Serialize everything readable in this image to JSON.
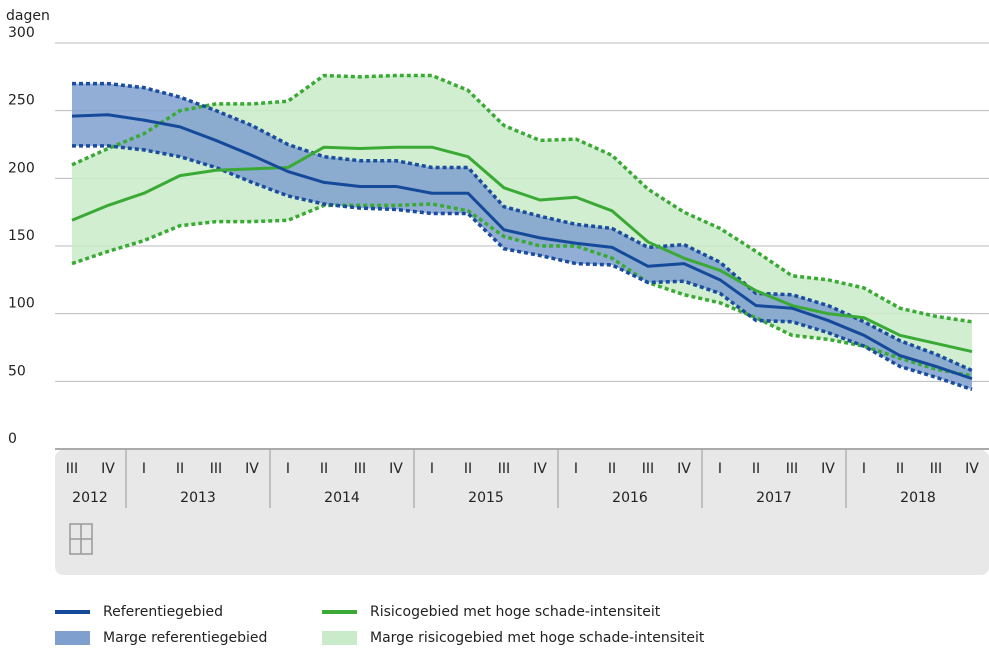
{
  "chart_data": {
    "type": "line",
    "y_axis_label": "dagen",
    "ylim": [
      0,
      300
    ],
    "yticks": [
      0,
      50,
      100,
      150,
      200,
      250,
      300
    ],
    "grid": true,
    "categories": [
      "III",
      "IV",
      "I",
      "II",
      "III",
      "IV",
      "I",
      "II",
      "III",
      "IV",
      "I",
      "II",
      "III",
      "IV",
      "I",
      "II",
      "III",
      "IV",
      "I",
      "II",
      "III",
      "IV",
      "I",
      "II",
      "III",
      "IV"
    ],
    "years": [
      "2012",
      "2013",
      "2014",
      "2015",
      "2016",
      "2017",
      "2018"
    ],
    "series": [
      {
        "name": "Marge risicogebied met hoge schade-intensiteit",
        "kind": "band",
        "color": "#c9ebc9",
        "edge_color": "#3aaa35",
        "upper": [
          210,
          222,
          233,
          250,
          255,
          255,
          257,
          276,
          275,
          276,
          276,
          265,
          239,
          228,
          229,
          217,
          192,
          175,
          163,
          146,
          128,
          125,
          119,
          104,
          98,
          94
        ],
        "lower": [
          137,
          146,
          154,
          165,
          168,
          168,
          169,
          180,
          180,
          180,
          181,
          176,
          157,
          150,
          150,
          141,
          123,
          114,
          108,
          97,
          84,
          81,
          76,
          67,
          59,
          54
        ]
      },
      {
        "name": "Marge referentiegebied",
        "kind": "band",
        "color": "#7f9fcf",
        "edge_color": "#1b4d9e",
        "upper": [
          270,
          270,
          267,
          260,
          250,
          239,
          225,
          216,
          213,
          213,
          208,
          208,
          179,
          172,
          166,
          163,
          149,
          151,
          138,
          115,
          114,
          106,
          94,
          80,
          70,
          58
        ],
        "lower": [
          224,
          224,
          221,
          216,
          208,
          197,
          187,
          181,
          178,
          177,
          174,
          174,
          148,
          143,
          137,
          136,
          123,
          124,
          115,
          95,
          94,
          86,
          76,
          61,
          53,
          44
        ]
      },
      {
        "name": "Risicogebied met hoge schade-intensiteit",
        "kind": "line",
        "color": "#3aaa35",
        "values": [
          169,
          180,
          189,
          202,
          206,
          207,
          208,
          223,
          222,
          223,
          223,
          216,
          193,
          184,
          186,
          176,
          153,
          141,
          132,
          117,
          106,
          100,
          97,
          84,
          78,
          72
        ]
      },
      {
        "name": "Referentiegebied",
        "kind": "line",
        "color": "#154a9a",
        "values": [
          246,
          247,
          243,
          238,
          228,
          217,
          205,
          197,
          194,
          194,
          189,
          189,
          162,
          156,
          152,
          149,
          135,
          137,
          125,
          106,
          104,
          95,
          84,
          69,
          61,
          52
        ]
      }
    ],
    "legend_order": [
      3,
      1,
      2,
      0
    ]
  }
}
